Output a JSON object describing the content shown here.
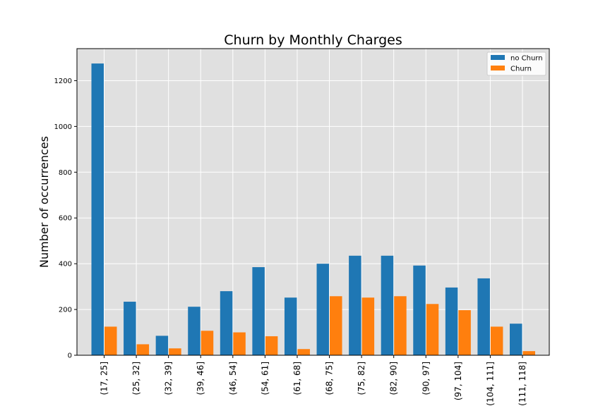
{
  "chart_data": {
    "type": "bar",
    "title": "Churn by Monthly Charges",
    "xlabel": "",
    "ylabel": "Number of occurrences",
    "categories": [
      "(17, 25]",
      "(25, 32]",
      "(32, 39]",
      "(39, 46]",
      "(46, 54]",
      "(54, 61]",
      "(61, 68]",
      "(68, 75]",
      "(75, 82]",
      "(82, 90]",
      "(90, 97]",
      "(97, 104]",
      "(104, 111]",
      "(111, 118]"
    ],
    "series": [
      {
        "name": "no Churn",
        "color": "#1f77b4",
        "values": [
          1275,
          234,
          85,
          212,
          280,
          385,
          252,
          400,
          435,
          435,
          392,
          296,
          336,
          138
        ]
      },
      {
        "name": "Churn",
        "color": "#ff7f0e",
        "values": [
          125,
          48,
          30,
          107,
          100,
          83,
          27,
          258,
          252,
          258,
          224,
          197,
          125,
          18
        ]
      }
    ],
    "ylim": [
      0,
      1340
    ],
    "yticks": [
      0,
      200,
      400,
      600,
      800,
      1000,
      1200
    ],
    "grid": true,
    "legend": "top-right",
    "background": "#e0e0e0"
  }
}
